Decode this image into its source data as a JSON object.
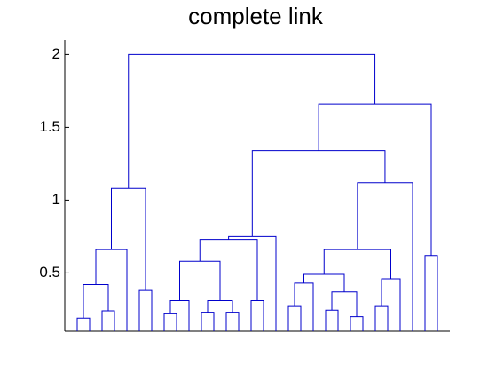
{
  "chart_data": {
    "type": "dendrogram",
    "title": "complete link",
    "color": "#0000cc",
    "ylim": [
      0.1,
      2.1
    ],
    "yticks": [
      0.5,
      1,
      1.5,
      2
    ],
    "tree": {
      "height": 2.0,
      "children": [
        {
          "height": 1.08,
          "children": [
            {
              "height": 0.66,
              "children": [
                {
                  "height": 0.42,
                  "children": [
                    {
                      "height": 0.19,
                      "children": [
                        null,
                        null
                      ]
                    },
                    {
                      "height": 0.24,
                      "children": [
                        null,
                        null
                      ]
                    }
                  ]
                },
                null
              ]
            },
            {
              "height": 0.38,
              "children": [
                null,
                null
              ]
            }
          ]
        },
        {
          "height": 1.66,
          "children": [
            {
              "height": 1.34,
              "children": [
                {
                  "height": 0.75,
                  "children": [
                    {
                      "height": 0.73,
                      "children": [
                        {
                          "height": 0.58,
                          "children": [
                            {
                              "height": 0.31,
                              "children": [
                                {
                                  "height": 0.22,
                                  "children": [
                                    null,
                                    null
                                  ]
                                },
                                null
                              ]
                            },
                            {
                              "height": 0.31,
                              "children": [
                                {
                                  "height": 0.23,
                                  "children": [
                                    null,
                                    null
                                  ]
                                },
                                {
                                  "height": 0.23,
                                  "children": [
                                    null,
                                    null
                                  ]
                                }
                              ]
                            }
                          ]
                        },
                        {
                          "height": 0.31,
                          "children": [
                            null,
                            null
                          ]
                        }
                      ]
                    },
                    null
                  ]
                },
                {
                  "height": 1.12,
                  "children": [
                    {
                      "height": 0.66,
                      "children": [
                        {
                          "height": 0.49,
                          "children": [
                            {
                              "height": 0.43,
                              "children": [
                                {
                                  "height": 0.27,
                                  "children": [
                                    null,
                                    null
                                  ]
                                },
                                null
                              ]
                            },
                            {
                              "height": 0.37,
                              "children": [
                                {
                                  "height": 0.245,
                                  "children": [
                                    null,
                                    null
                                  ]
                                },
                                {
                                  "height": 0.2,
                                  "children": [
                                    null,
                                    null
                                  ]
                                }
                              ]
                            }
                          ]
                        },
                        {
                          "height": 0.46,
                          "children": [
                            {
                              "height": 0.27,
                              "children": [
                                null,
                                null
                              ]
                            },
                            null
                          ]
                        }
                      ]
                    },
                    null
                  ]
                }
              ]
            },
            {
              "height": 0.62,
              "children": [
                null,
                null
              ]
            }
          ]
        }
      ]
    }
  }
}
